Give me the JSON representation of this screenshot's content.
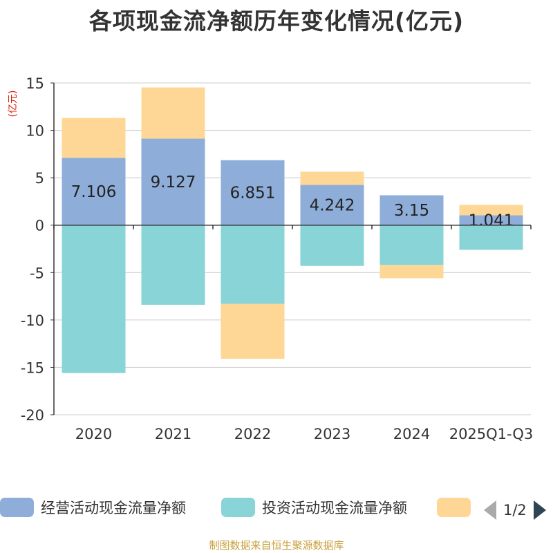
{
  "header": {
    "title": "各项现金流净额历年变化情况(亿元)"
  },
  "chart_data": {
    "type": "bar",
    "stacked": true,
    "unit_label": "(亿元)",
    "categories": [
      "2020",
      "2021",
      "2022",
      "2023",
      "2024",
      "2025Q1-Q3"
    ],
    "ylim": [
      -20,
      15
    ],
    "yticks": [
      15,
      10,
      5,
      0,
      -5,
      -10,
      -15,
      -20
    ],
    "grid": true,
    "series": [
      {
        "name": "经营活动现金流量净额",
        "color": "#8eaed9",
        "values": [
          7.106,
          9.127,
          6.851,
          4.242,
          3.15,
          1.041
        ],
        "labels": [
          "7.106",
          "9.127",
          "6.851",
          "4.242",
          "3.15",
          "1.041"
        ]
      },
      {
        "name": "投资活动现金流量净额",
        "color": "#88d4d6",
        "values": [
          -15.6,
          -8.4,
          -8.3,
          -4.3,
          -4.2,
          -2.6
        ]
      },
      {
        "name": "",
        "color": "#fed797",
        "values": [
          4.2,
          5.4,
          -5.8,
          1.4,
          -1.4,
          1.1
        ]
      }
    ]
  },
  "legend": {
    "items": [
      {
        "label": "经营活动现金流量净额",
        "color": "#8eaed9"
      },
      {
        "label": "投资活动现金流量净额",
        "color": "#88d4d6"
      },
      {
        "label": "",
        "color": "#fed797"
      }
    ],
    "page": "1/2"
  },
  "footer": {
    "source": "制图数据来自恒生聚源数据库"
  }
}
